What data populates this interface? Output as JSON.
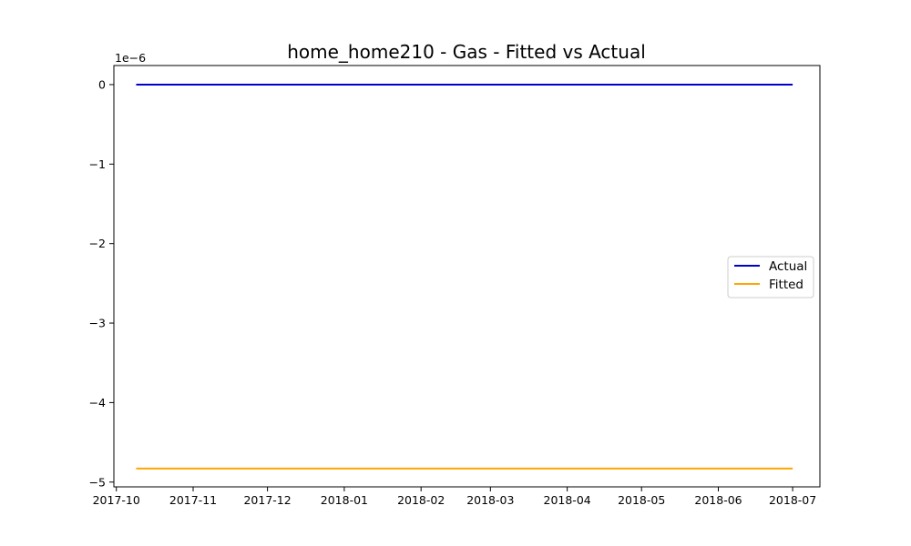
{
  "chart_data": {
    "type": "line",
    "title": "home_home210 - Gas - Fitted vs Actual",
    "xlabel": "",
    "ylabel": "",
    "y_offset_label": "1e−6",
    "y_scale": 1e-06,
    "xlim": [
      "2017-09-30",
      "2018-07-12"
    ],
    "ylim": [
      -5.06,
      0.24
    ],
    "x_ticks": [
      {
        "date": "2017-10-01",
        "label": "2017-10"
      },
      {
        "date": "2017-11-01",
        "label": "2017-11"
      },
      {
        "date": "2017-12-01",
        "label": "2017-12"
      },
      {
        "date": "2018-01-01",
        "label": "2018-01"
      },
      {
        "date": "2018-02-01",
        "label": "2018-02"
      },
      {
        "date": "2018-03-01",
        "label": "2018-03"
      },
      {
        "date": "2018-04-01",
        "label": "2018-04"
      },
      {
        "date": "2018-05-01",
        "label": "2018-05"
      },
      {
        "date": "2018-06-01",
        "label": "2018-06"
      },
      {
        "date": "2018-07-01",
        "label": "2018-07"
      }
    ],
    "y_ticks": [
      {
        "value": 0,
        "label": "0"
      },
      {
        "value": -1,
        "label": "−1"
      },
      {
        "value": -2,
        "label": "−2"
      },
      {
        "value": -3,
        "label": "−3"
      },
      {
        "value": -4,
        "label": "−4"
      },
      {
        "value": -5,
        "label": "−5"
      }
    ],
    "series": [
      {
        "name": "Actual",
        "color": "#0000cc",
        "x": [
          "2017-10-09",
          "2018-07-01"
        ],
        "y": [
          0,
          0
        ]
      },
      {
        "name": "Fitted",
        "color": "#ffa500",
        "x": [
          "2017-10-09",
          "2018-07-01"
        ],
        "y": [
          -4.83,
          -4.83
        ]
      }
    ],
    "legend": {
      "placement": "center-right"
    },
    "grid": false
  }
}
